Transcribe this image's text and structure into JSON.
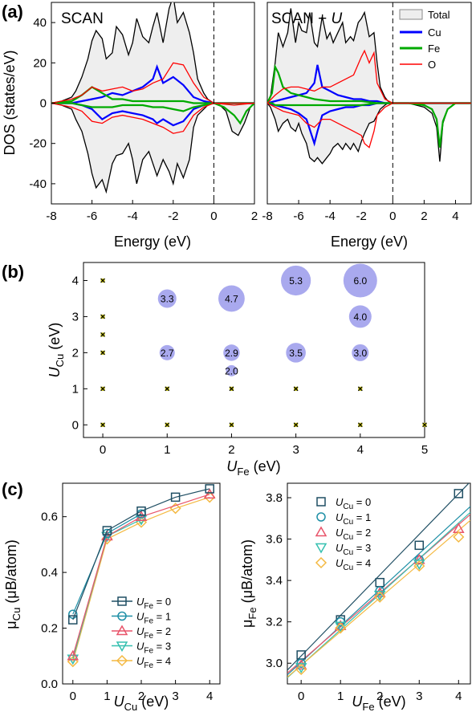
{
  "panels": {
    "a": "(a)",
    "b": "(b)",
    "c": "(c)"
  },
  "chart_data": [
    {
      "type": "area",
      "panel": "a-left",
      "title": "SCAN",
      "xlabel": "Energy (eV)",
      "ylabel": "DOS (states/eV)",
      "xlim": [
        -8,
        2
      ],
      "ylim": [
        -50,
        50
      ],
      "xticks": [
        -8,
        -6,
        -4,
        -2,
        0,
        2
      ],
      "yticks": [
        -40,
        -20,
        0,
        20,
        40
      ],
      "fermi_line": 0,
      "legend": [
        "Total",
        "Cu",
        "Fe",
        "O"
      ],
      "series": [
        {
          "name": "Total",
          "color": "#000000",
          "x": [
            -8,
            -7.5,
            -7,
            -6.8,
            -6.5,
            -6.2,
            -6,
            -5.8,
            -5.5,
            -5.3,
            -5,
            -4.8,
            -4.5,
            -4.2,
            -4,
            -3.8,
            -3.5,
            -3.2,
            -3,
            -2.8,
            -2.5,
            -2.2,
            -2,
            -1.8,
            -1.5,
            -1.2,
            -1,
            -0.8,
            -0.5,
            -0.3,
            0,
            0.3,
            0.6,
            0.9,
            1.2,
            1.5,
            1.8,
            2
          ],
          "up": [
            0,
            1,
            3,
            6,
            13,
            22,
            31,
            36,
            32,
            22,
            25,
            38,
            34,
            24,
            30,
            42,
            33,
            30,
            38,
            45,
            30,
            47,
            53,
            40,
            45,
            35,
            25,
            12,
            5,
            2,
            0,
            0,
            0,
            0,
            0,
            0,
            0,
            0
          ],
          "down": [
            0,
            -1,
            -3,
            -8,
            -14,
            -25,
            -35,
            -42,
            -38,
            -44,
            -30,
            -26,
            -25,
            -20,
            -28,
            -40,
            -28,
            -24,
            -30,
            -36,
            -28,
            -34,
            -40,
            -30,
            -37,
            -28,
            -12,
            -6,
            -3,
            -1,
            0,
            -1,
            -4,
            -14,
            -16,
            -10,
            -2,
            0
          ]
        },
        {
          "name": "Cu",
          "color": "#0000ff",
          "x": [
            -8,
            -7,
            -6.5,
            -6,
            -5.5,
            -5,
            -4.5,
            -4,
            -3.5,
            -3,
            -2.8,
            -2.5,
            -2,
            -1.5,
            -1,
            -0.5,
            0,
            1,
            2
          ],
          "up": [
            0,
            0,
            1,
            2,
            3,
            5,
            4,
            6,
            8,
            12,
            18,
            10,
            13,
            9,
            3,
            1,
            0,
            0,
            0
          ],
          "down": [
            0,
            0,
            -1,
            -3,
            -8,
            -5,
            -4,
            -5,
            -6,
            -8,
            -10,
            -8,
            -11,
            -9,
            -3,
            -1,
            0,
            0,
            0
          ]
        },
        {
          "name": "Fe",
          "color": "#00aa00",
          "x": [
            -8,
            -7,
            -6.5,
            -6,
            -5.5,
            -5,
            -4.5,
            -4,
            -3.5,
            -3,
            -2.5,
            -2,
            -1.5,
            -1,
            -0.5,
            0,
            0.5,
            1,
            1.3,
            1.6,
            2
          ],
          "up": [
            0,
            1,
            4,
            8,
            5,
            2,
            2,
            1,
            1,
            1,
            1,
            1,
            1,
            0,
            0,
            0,
            0,
            0,
            0,
            0,
            0
          ],
          "down": [
            0,
            0,
            -1,
            -2,
            -2,
            -2,
            -1,
            -1,
            -1,
            -2,
            -2,
            -3,
            -4,
            -2,
            -1,
            0,
            -2,
            -6,
            -10,
            -4,
            0
          ]
        },
        {
          "name": "O",
          "color": "#ff0000",
          "x": [
            -8,
            -7,
            -6.5,
            -6,
            -5.5,
            -5,
            -4.5,
            -4,
            -3.5,
            -3,
            -2.5,
            -2,
            -1.5,
            -1,
            -0.5,
            0,
            1,
            2
          ],
          "up": [
            0,
            2,
            4,
            8,
            6,
            7,
            8,
            6,
            7,
            10,
            12,
            20,
            19,
            10,
            3,
            0,
            0,
            0
          ],
          "down": [
            0,
            -2,
            -4,
            -9,
            -10,
            -7,
            -6,
            -7,
            -8,
            -10,
            -12,
            -15,
            -14,
            -6,
            -2,
            0,
            -1,
            0
          ]
        }
      ]
    },
    {
      "type": "area",
      "panel": "a-right",
      "title": "SCAN + ",
      "title_italic": "U",
      "xlabel": "Energy (eV)",
      "xlim": [
        -8,
        5
      ],
      "ylim": [
        -50,
        50
      ],
      "xticks": [
        -8,
        -6,
        -4,
        -2,
        0,
        2,
        4
      ],
      "fermi_line": 0,
      "series": [
        {
          "name": "Total",
          "color": "#000000",
          "x": [
            -8,
            -7.8,
            -7.5,
            -7.3,
            -7,
            -6.7,
            -6.5,
            -6.2,
            -6,
            -5.8,
            -5.5,
            -5.3,
            -5,
            -4.8,
            -4.5,
            -4.2,
            -4,
            -3.8,
            -3.5,
            -3.2,
            -3,
            -2.7,
            -2.5,
            -2.2,
            -2,
            -1.8,
            -1.5,
            -1.2,
            -1,
            -0.8,
            -0.5,
            -0.3,
            0,
            0.5,
            1,
            1.5,
            2,
            2.5,
            2.8,
            3,
            3.2,
            3.5,
            4,
            4.5,
            5
          ],
          "up": [
            0,
            3,
            20,
            35,
            28,
            35,
            47,
            30,
            40,
            36,
            35,
            45,
            30,
            28,
            43,
            32,
            35,
            30,
            35,
            40,
            30,
            33,
            31,
            40,
            42,
            45,
            33,
            35,
            20,
            8,
            3,
            1,
            0,
            0,
            0,
            0,
            0,
            0,
            0,
            0,
            0,
            0,
            0,
            0,
            0
          ],
          "down": [
            0,
            -2,
            -8,
            -14,
            -10,
            -8,
            -12,
            -14,
            -10,
            -15,
            -20,
            -27,
            -29,
            -27,
            -30,
            -27,
            -25,
            -22,
            -20,
            -23,
            -20,
            -23,
            -20,
            -24,
            -19,
            -15,
            -10,
            -9,
            -6,
            -3,
            -1,
            0,
            0,
            0,
            0,
            -1,
            -2,
            -5,
            -12,
            -29,
            -10,
            -3,
            0,
            0,
            0
          ]
        },
        {
          "name": "Cu",
          "color": "#0000ff",
          "x": [
            -8,
            -7.5,
            -7,
            -6.5,
            -6,
            -5.5,
            -5,
            -4.8,
            -4.5,
            -4,
            -3.5,
            -3,
            -2.5,
            -2,
            -1.5,
            -1,
            -0.5,
            0,
            5
          ],
          "up": [
            0,
            1,
            2,
            3,
            4,
            5,
            10,
            19,
            8,
            6,
            4,
            3,
            2,
            2,
            1,
            1,
            0,
            0,
            0
          ],
          "down": [
            0,
            -1,
            -2,
            -3,
            -5,
            -8,
            -20,
            -14,
            -6,
            -4,
            -3,
            -2,
            -2,
            -1,
            -1,
            0,
            0,
            0,
            0
          ]
        },
        {
          "name": "Fe",
          "color": "#00aa00",
          "x": [
            -8,
            -7.7,
            -7.5,
            -7.3,
            -7,
            -6.5,
            -6,
            -5.5,
            -5,
            -4,
            -3,
            -2,
            -1,
            0,
            1,
            2,
            2.5,
            2.8,
            3,
            3.2,
            3.5,
            4,
            5
          ],
          "up": [
            0,
            5,
            18,
            15,
            8,
            5,
            4,
            3,
            2,
            1,
            1,
            1,
            0,
            0,
            0,
            0,
            0,
            0,
            0,
            0,
            0,
            0,
            0
          ],
          "down": [
            0,
            0,
            -1,
            -1,
            -1,
            -1,
            -1,
            -1,
            -1,
            -1,
            -1,
            -1,
            0,
            0,
            0,
            -1,
            -3,
            -8,
            -22,
            -9,
            -3,
            0,
            0
          ]
        },
        {
          "name": "O",
          "color": "#ff0000",
          "x": [
            -8,
            -7.5,
            -7,
            -6.5,
            -6,
            -5.5,
            -5,
            -4.5,
            -4,
            -3.5,
            -3,
            -2.5,
            -2,
            -1.8,
            -1.5,
            -1.2,
            -1,
            -0.5,
            0,
            5
          ],
          "up": [
            0,
            4,
            7,
            8,
            8,
            7,
            6,
            8,
            8,
            10,
            12,
            14,
            23,
            26,
            20,
            25,
            10,
            2,
            0,
            0
          ],
          "down": [
            0,
            -2,
            -4,
            -5,
            -6,
            -10,
            -12,
            -8,
            -8,
            -10,
            -12,
            -14,
            -16,
            -20,
            -22,
            -14,
            -6,
            -2,
            0,
            0
          ]
        }
      ]
    },
    {
      "type": "scatter",
      "panel": "b",
      "xlabel_main": "U",
      "xlabel_sub": "Fe",
      "xlabel_unit": " (eV)",
      "ylabel_main": "U",
      "ylabel_sub": "Cu",
      "ylabel_unit": " (eV)",
      "xlim": [
        -0.3,
        5
      ],
      "ylim": [
        -0.35,
        4.5
      ],
      "xticks": [
        0,
        1,
        2,
        3,
        4,
        5
      ],
      "yticks": [
        0,
        1,
        2,
        3,
        4
      ],
      "markers": [
        {
          "x": 0,
          "y": 0
        },
        {
          "x": 0,
          "y": 1
        },
        {
          "x": 0,
          "y": 2
        },
        {
          "x": 0,
          "y": 2.5
        },
        {
          "x": 0,
          "y": 3
        },
        {
          "x": 0,
          "y": 4
        },
        {
          "x": 1,
          "y": 0
        },
        {
          "x": 1,
          "y": 1
        },
        {
          "x": 2,
          "y": 0
        },
        {
          "x": 2,
          "y": 1
        },
        {
          "x": 3,
          "y": 0
        },
        {
          "x": 3,
          "y": 1
        },
        {
          "x": 4,
          "y": 0
        },
        {
          "x": 4,
          "y": 1
        },
        {
          "x": 5,
          "y": 0
        }
      ],
      "bubbles": [
        {
          "x": 1,
          "y": 2,
          "value": 2.7,
          "label": "2.7"
        },
        {
          "x": 1,
          "y": 3.5,
          "value": 3.3,
          "label": "3.3"
        },
        {
          "x": 2,
          "y": 1.5,
          "value": 2.0,
          "label": "2.0"
        },
        {
          "x": 2,
          "y": 2,
          "value": 2.9,
          "label": "2.9"
        },
        {
          "x": 2,
          "y": 3.5,
          "value": 4.7,
          "label": "4.7"
        },
        {
          "x": 3,
          "y": 2,
          "value": 3.5,
          "label": "3.5"
        },
        {
          "x": 3,
          "y": 4,
          "value": 5.3,
          "label": "5.3"
        },
        {
          "x": 4,
          "y": 2,
          "value": 3.0,
          "label": "3.0"
        },
        {
          "x": 4,
          "y": 3,
          "value": 4.0,
          "label": "4.0"
        },
        {
          "x": 4,
          "y": 4,
          "value": 6.0,
          "label": "6.0"
        }
      ],
      "bubble_color": "#8c8ce8"
    },
    {
      "type": "line",
      "panel": "c-left",
      "xlabel_main": "U",
      "xlabel_sub": "Cu",
      "xlabel_unit": " (eV)",
      "ylabel_main": "μ",
      "ylabel_sub": "Cu",
      "ylabel_unit": " (μB/atom)",
      "xlim": [
        -0.3,
        4.3
      ],
      "ylim": [
        0,
        0.72
      ],
      "xticks": [
        0,
        1,
        2,
        3,
        4
      ],
      "yticks": [
        0.0,
        0.2,
        0.4,
        0.6
      ],
      "x": [
        0,
        1,
        2,
        3,
        4
      ],
      "series": [
        {
          "legend_main": "U",
          "legend_sub": "Fe",
          "legend_val": " = 0",
          "marker": "square",
          "color": "#1f4e63",
          "values": [
            0.23,
            0.55,
            0.62,
            0.67,
            0.7
          ]
        },
        {
          "legend_main": "U",
          "legend_sub": "Fe",
          "legend_val": " = 1",
          "marker": "circle",
          "color": "#1e8fa6",
          "values": [
            0.25,
            0.54,
            0.61,
            null,
            null
          ]
        },
        {
          "legend_main": "U",
          "legend_sub": "Fe",
          "legend_val": " = 2",
          "marker": "triangle-up",
          "color": "#e8546a",
          "values": [
            0.1,
            0.53,
            0.6,
            null,
            0.68
          ]
        },
        {
          "legend_main": "U",
          "legend_sub": "Fe",
          "legend_val": " = 3",
          "marker": "triangle-down",
          "color": "#36c0b0",
          "values": [
            0.09,
            0.53,
            0.59,
            null,
            null
          ]
        },
        {
          "legend_main": "U",
          "legend_sub": "Fe",
          "legend_val": " = 4",
          "marker": "diamond",
          "color": "#f4b942",
          "values": [
            0.08,
            0.52,
            0.58,
            0.63,
            0.67
          ]
        }
      ]
    },
    {
      "type": "scatter",
      "panel": "c-right",
      "xlabel_main": "U",
      "xlabel_sub": "Fe",
      "xlabel_unit": " (eV)",
      "ylabel_main": "μ",
      "ylabel_sub": "Fe",
      "ylabel_unit": " (μB/atom)",
      "xlim": [
        -0.35,
        4.3
      ],
      "ylim": [
        2.9,
        3.87
      ],
      "xticks": [
        0,
        1,
        2,
        3,
        4
      ],
      "yticks": [
        3.0,
        3.2,
        3.4,
        3.6,
        3.8
      ],
      "x": [
        0,
        1,
        2,
        3,
        4
      ],
      "series": [
        {
          "legend_main": "U",
          "legend_sub": "Cu",
          "legend_val": " = 0",
          "marker": "square",
          "color": "#1f4e63",
          "values": [
            3.04,
            3.21,
            3.39,
            3.57,
            3.82
          ],
          "fit": [
            3.035,
            0.196
          ]
        },
        {
          "legend_main": "U",
          "legend_sub": "Cu",
          "legend_val": " = 1",
          "marker": "circle",
          "color": "#1e8fa6",
          "values": [
            3.0,
            3.2,
            3.35,
            3.5,
            null
          ],
          "fit": [
            3.005,
            0.175
          ]
        },
        {
          "legend_main": "U",
          "legend_sub": "Cu",
          "legend_val": " = 2",
          "marker": "triangle-up",
          "color": "#e8546a",
          "values": [
            2.99,
            3.18,
            3.34,
            3.5,
            3.65
          ],
          "fit": [
            3.01,
            0.165
          ]
        },
        {
          "legend_main": "U",
          "legend_sub": "Cu",
          "legend_val": " = 3",
          "marker": "triangle-down",
          "color": "#36c0b0",
          "values": [
            2.98,
            3.18,
            3.33,
            3.48,
            null
          ],
          "fit": [
            2.99,
            0.172
          ]
        },
        {
          "legend_main": "U",
          "legend_sub": "Cu",
          "legend_val": " = 4",
          "marker": "diamond",
          "color": "#f4b942",
          "values": [
            2.97,
            3.17,
            3.32,
            3.47,
            3.61
          ],
          "fit": [
            2.99,
            0.163
          ]
        }
      ]
    }
  ]
}
